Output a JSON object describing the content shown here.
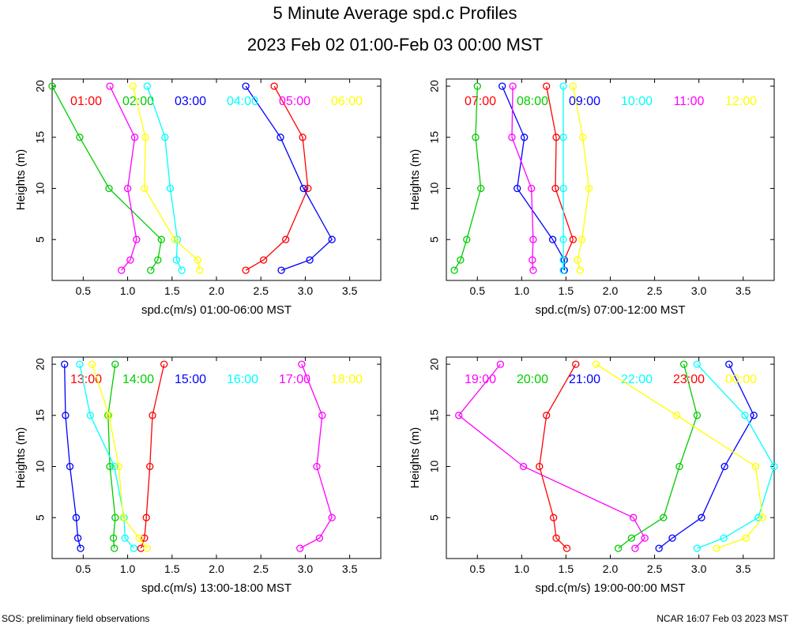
{
  "title": "5 Minute Average spd.c Profiles",
  "subtitle": "2023 Feb 02 01:00-Feb 03 00:00 MST",
  "footer_left": "SOS: preliminary field observations",
  "footer_right": "NCAR 16:07 Feb 03 2023 MST",
  "chart_data": [
    {
      "type": "line",
      "xlabel": "spd.c(m/s) 01:00-06:00 MST",
      "ylabel": "Heights (m)",
      "xlim": [
        0.15,
        3.85
      ],
      "ylim": [
        1,
        20.7
      ],
      "xticks": [
        0.5,
        1.0,
        1.5,
        2.0,
        2.5,
        3.0,
        3.5
      ],
      "xtick_labels": [
        "0.5",
        "1.0",
        "1.5",
        "2.0",
        "2.5",
        "3.0",
        "3.5"
      ],
      "yticks": [
        5,
        10,
        15,
        20
      ],
      "ytick_labels": [
        "5",
        "10",
        "15",
        "20"
      ],
      "heights": [
        2,
        3,
        5,
        10,
        15,
        20
      ],
      "series": [
        {
          "name": "01:00",
          "color": "#ff0000",
          "values": [
            2.33,
            2.53,
            2.78,
            3.03,
            2.97,
            2.65
          ]
        },
        {
          "name": "02:00",
          "color": "#00cc00",
          "values": [
            1.26,
            1.34,
            1.38,
            0.79,
            0.46,
            0.15
          ]
        },
        {
          "name": "03:00",
          "color": "#0000ff",
          "values": [
            2.73,
            3.05,
            3.3,
            2.98,
            2.72,
            2.33
          ]
        },
        {
          "name": "04:00",
          "color": "#00ffff",
          "values": [
            1.61,
            1.55,
            1.56,
            1.48,
            1.42,
            1.22
          ]
        },
        {
          "name": "05:00",
          "color": "#ff00ff",
          "values": [
            0.93,
            1.03,
            1.1,
            1.0,
            1.08,
            0.8
          ]
        },
        {
          "name": "06:00",
          "color": "#ffff00",
          "values": [
            1.81,
            1.79,
            1.53,
            1.19,
            1.2,
            1.06
          ]
        }
      ]
    },
    {
      "type": "line",
      "xlabel": "spd.c(m/s) 07:00-12:00 MST",
      "ylabel": "Heights (m)",
      "xlim": [
        0.15,
        3.85
      ],
      "ylim": [
        1,
        20.7
      ],
      "xticks": [
        0.5,
        1.0,
        1.5,
        2.0,
        2.5,
        3.0,
        3.5
      ],
      "xtick_labels": [
        "0.5",
        "1.0",
        "1.5",
        "2.0",
        "2.5",
        "3.0",
        "3.5"
      ],
      "yticks": [
        5,
        10,
        15,
        20
      ],
      "ytick_labels": [
        "5",
        "10",
        "15",
        "20"
      ],
      "heights": [
        2,
        3,
        5,
        10,
        15,
        20
      ],
      "series": [
        {
          "name": "07:00",
          "color": "#ff0000",
          "values": [
            1.48,
            1.48,
            1.58,
            1.38,
            1.39,
            1.28
          ]
        },
        {
          "name": "08:00",
          "color": "#00cc00",
          "values": [
            0.24,
            0.31,
            0.38,
            0.54,
            0.48,
            0.5
          ]
        },
        {
          "name": "09:00",
          "color": "#0000ff",
          "values": [
            1.48,
            1.48,
            1.35,
            0.95,
            1.03,
            0.78
          ]
        },
        {
          "name": "10:00",
          "color": "#00ffff",
          "values": [
            1.47,
            1.47,
            1.47,
            1.47,
            1.47,
            1.47
          ]
        },
        {
          "name": "11:00",
          "color": "#ff00ff",
          "values": [
            1.13,
            1.12,
            1.13,
            1.11,
            0.89,
            0.9
          ]
        },
        {
          "name": "12:00",
          "color": "#ffff00",
          "values": [
            1.66,
            1.63,
            1.68,
            1.76,
            1.69,
            1.58
          ]
        }
      ]
    },
    {
      "type": "line",
      "xlabel": "spd.c(m/s) 13:00-18:00 MST",
      "ylabel": "Heights (m)",
      "xlim": [
        0.15,
        3.85
      ],
      "ylim": [
        1,
        20.7
      ],
      "xticks": [
        0.5,
        1.0,
        1.5,
        2.0,
        2.5,
        3.0,
        3.5
      ],
      "xtick_labels": [
        "0.5",
        "1.0",
        "1.5",
        "2.0",
        "2.5",
        "3.0",
        "3.5"
      ],
      "yticks": [
        5,
        10,
        15,
        20
      ],
      "ytick_labels": [
        "5",
        "10",
        "15",
        "20"
      ],
      "heights": [
        2,
        3,
        5,
        10,
        15,
        20
      ],
      "series": [
        {
          "name": "13:00",
          "color": "#ff0000",
          "values": [
            1.15,
            1.19,
            1.21,
            1.25,
            1.28,
            1.41
          ]
        },
        {
          "name": "14:00",
          "color": "#00cc00",
          "values": [
            0.85,
            0.84,
            0.86,
            0.8,
            0.78,
            0.86
          ]
        },
        {
          "name": "15:00",
          "color": "#0000ff",
          "values": [
            0.47,
            0.44,
            0.42,
            0.35,
            0.3,
            0.29
          ]
        },
        {
          "name": "16:00",
          "color": "#00ffff",
          "values": [
            1.07,
            0.97,
            0.96,
            0.85,
            0.58,
            0.46
          ]
        },
        {
          "name": "17:00",
          "color": "#ff00ff",
          "values": [
            2.94,
            3.16,
            3.3,
            3.13,
            3.19,
            2.96
          ]
        },
        {
          "name": "18:00",
          "color": "#ffff00",
          "values": [
            1.22,
            1.13,
            0.95,
            0.9,
            0.79,
            0.6
          ]
        }
      ]
    },
    {
      "type": "line",
      "xlabel": "spd.c(m/s) 19:00-00:00 MST",
      "ylabel": "Heights (m)",
      "xlim": [
        0.15,
        3.85
      ],
      "ylim": [
        1,
        20.7
      ],
      "xticks": [
        0.5,
        1.0,
        1.5,
        2.0,
        2.5,
        3.0,
        3.5
      ],
      "xtick_labels": [
        "0.5",
        "1.0",
        "1.5",
        "2.0",
        "2.5",
        "3.0",
        "3.5"
      ],
      "yticks": [
        5,
        10,
        15,
        20
      ],
      "ytick_labels": [
        "5",
        "10",
        "15",
        "20"
      ],
      "heights": [
        2,
        3,
        5,
        10,
        15,
        20
      ],
      "series": [
        {
          "name": "19:00",
          "color": "#ff00ff",
          "values": [
            2.28,
            2.39,
            2.26,
            1.02,
            0.29,
            0.76
          ]
        },
        {
          "name": "20:00",
          "color": "#00cc00",
          "values": [
            2.09,
            2.24,
            2.6,
            2.78,
            2.98,
            2.83
          ]
        },
        {
          "name": "21:00",
          "color": "#0000ff",
          "values": [
            2.55,
            2.7,
            3.03,
            3.29,
            3.62,
            3.34
          ]
        },
        {
          "name": "22:00",
          "color": "#00ffff",
          "values": [
            2.98,
            3.28,
            3.67,
            3.85,
            3.52,
            2.98
          ]
        },
        {
          "name": "23:00",
          "color": "#ff0000",
          "values": [
            1.51,
            1.39,
            1.36,
            1.2,
            1.28,
            1.61
          ]
        },
        {
          "name": "00:00",
          "color": "#ffff00",
          "values": [
            3.2,
            3.53,
            3.72,
            3.64,
            2.75,
            1.84
          ]
        }
      ]
    }
  ]
}
